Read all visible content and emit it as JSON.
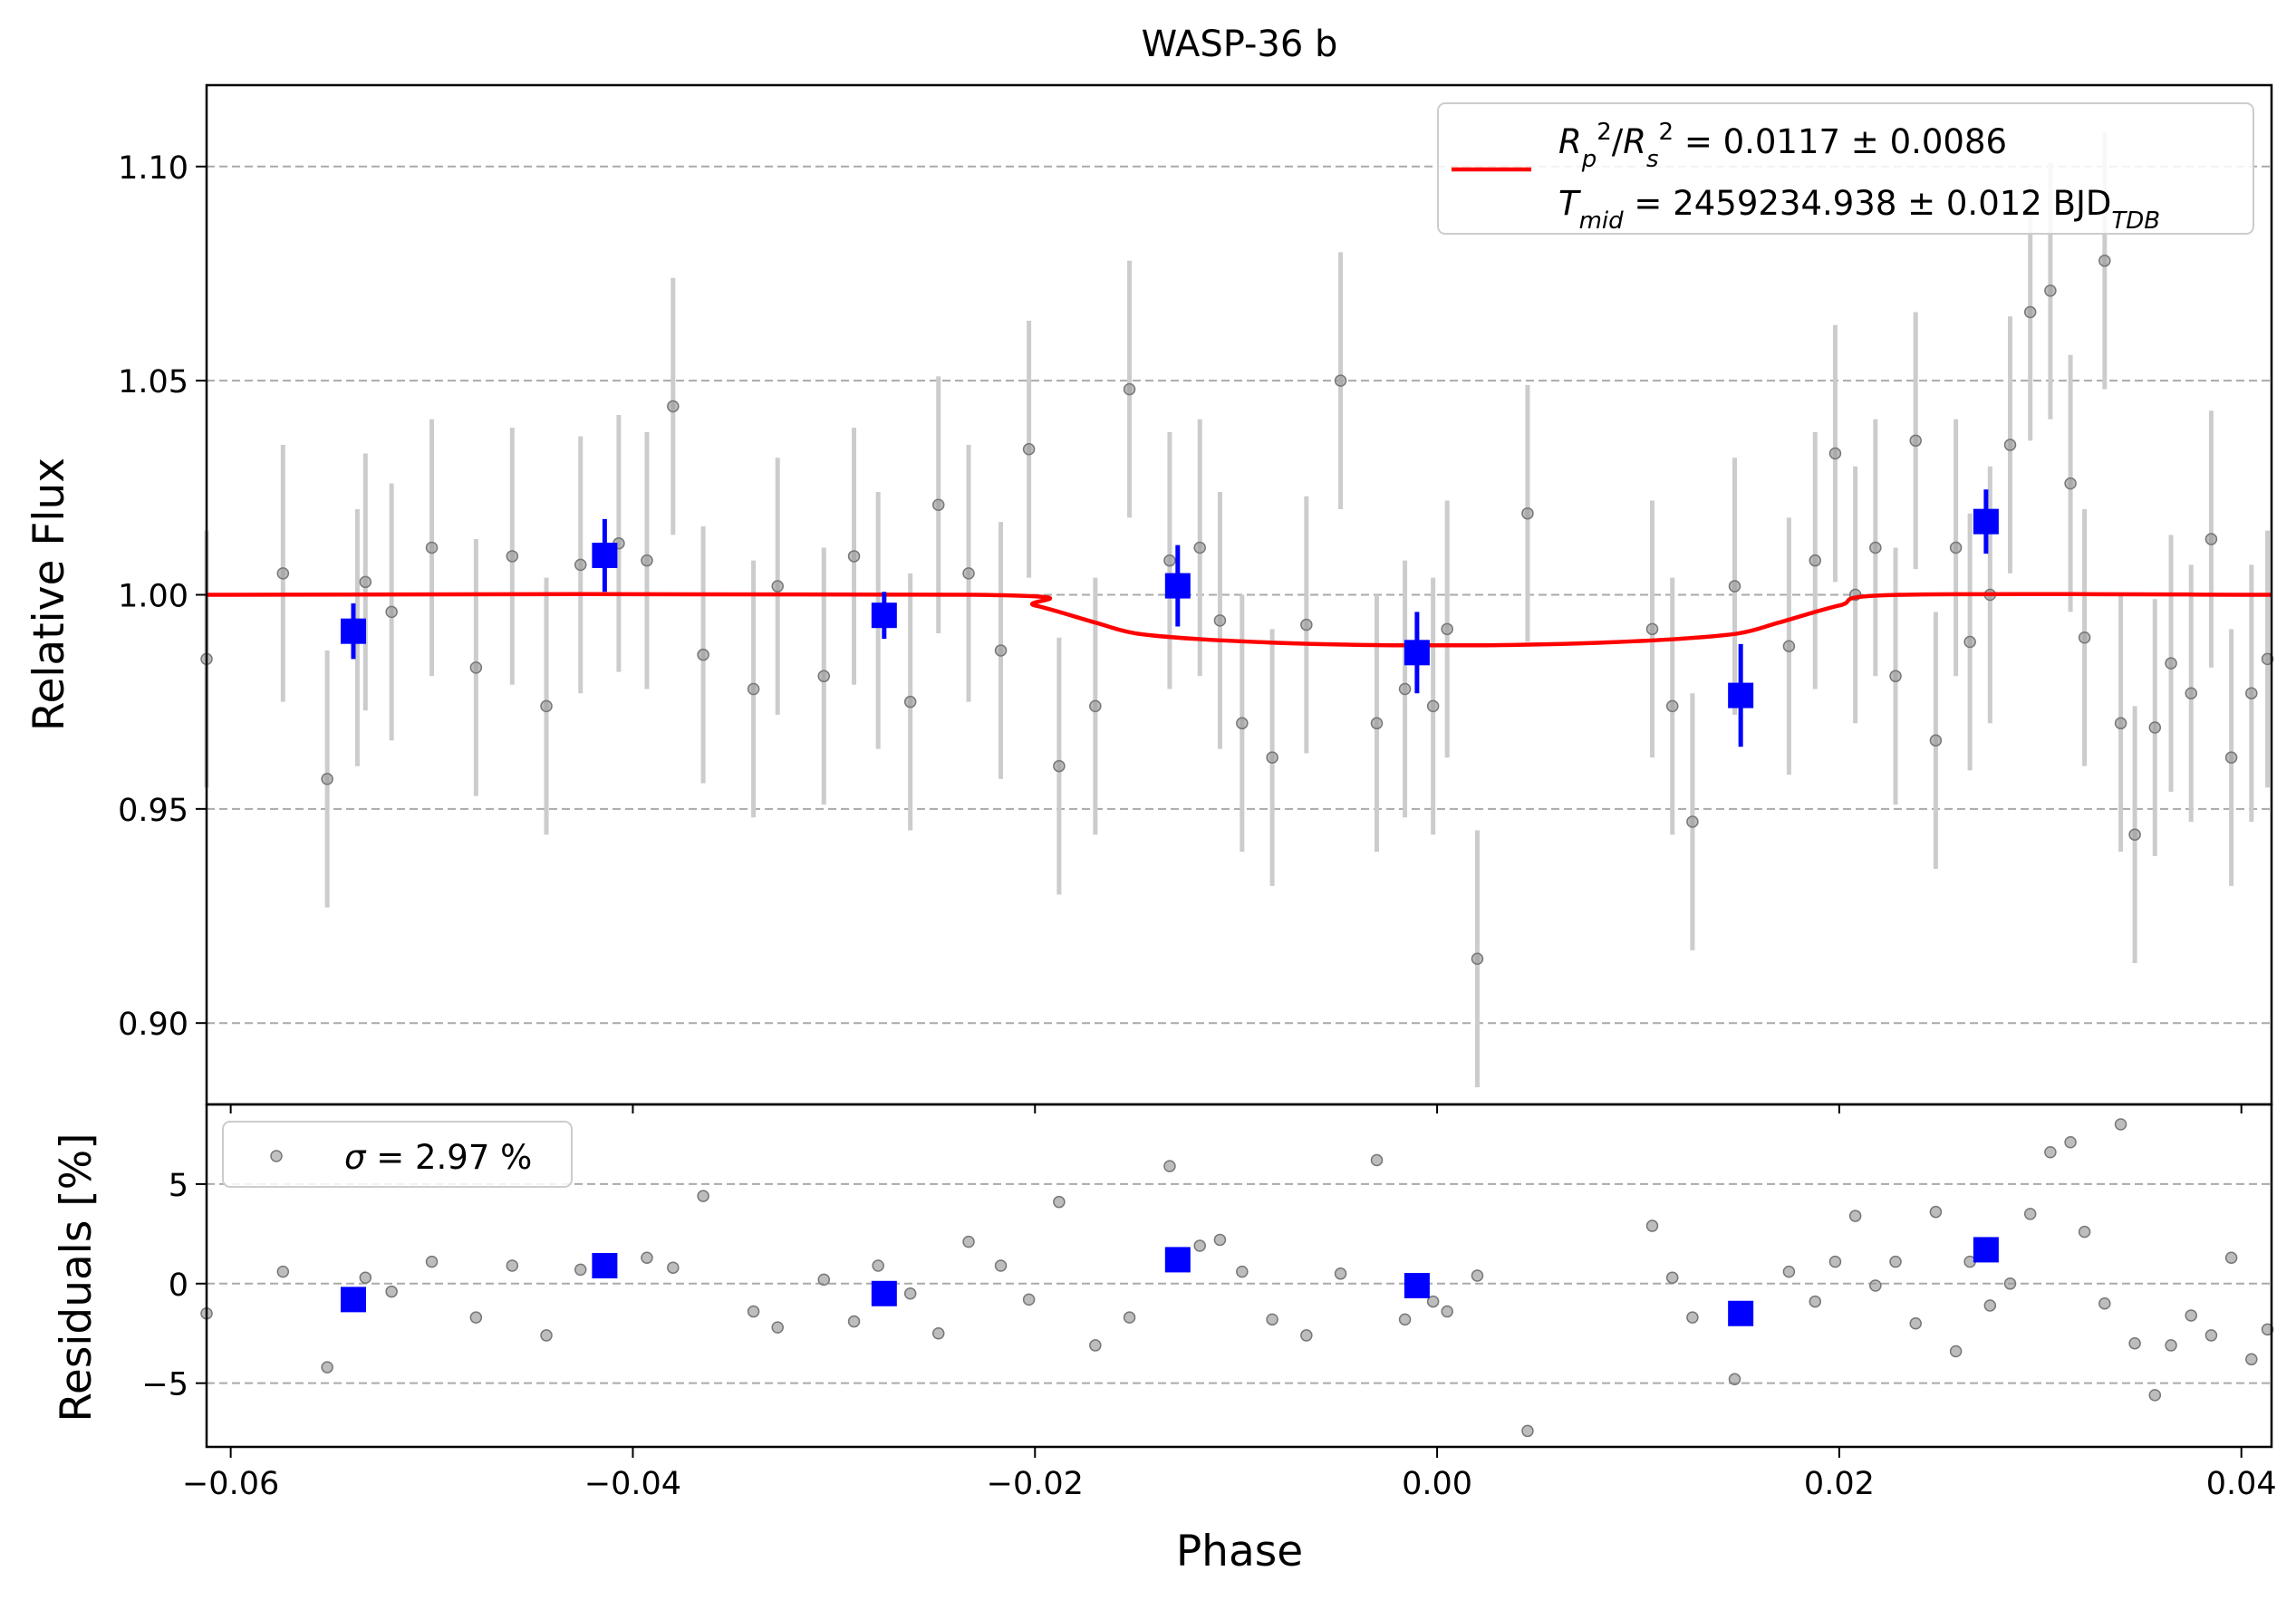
{
  "chart_data": [
    {
      "panel": "main",
      "type": "scatter",
      "title": "WASP-36 b",
      "xlabel": "",
      "ylabel": "Relative Flux",
      "xlim": [
        -0.0612,
        0.0415
      ],
      "ylim": [
        0.881,
        1.119
      ],
      "xticks": [
        -0.06,
        -0.04,
        -0.02,
        0.0,
        0.02,
        0.04
      ],
      "xtick_labels": [
        "",
        "",
        "",
        "",
        "",
        ""
      ],
      "yticks": [
        0.9,
        0.95,
        1.0,
        1.05,
        1.1
      ],
      "ytick_labels": [
        "0.90",
        "0.95",
        "1.00",
        "1.05",
        "1.10"
      ],
      "grid": "horizontal dashed",
      "legend": {
        "placement": "top-right",
        "line1": "R_p^2/R_s^2 = 0.0117 ± 0.0086",
        "line2": "T_mid = 2459234.938 ± 0.012 BJD_TDB"
      },
      "colors": {
        "data": "#999999",
        "errorbar": "#cccccc",
        "binned": "#0000ff",
        "model": "#ff0000"
      },
      "series": [
        {
          "kind": "data",
          "x": [
            -0.0612,
            -0.0574,
            -0.0552,
            -0.0537,
            -0.0533,
            -0.052,
            -0.05,
            -0.0478,
            -0.046,
            -0.0443,
            -0.0426,
            -0.0407,
            -0.0393,
            -0.038,
            -0.0365,
            -0.034,
            -0.0328,
            -0.0305,
            -0.029,
            -0.0278,
            -0.0262,
            -0.0248,
            -0.0233,
            -0.0217,
            -0.0203,
            -0.0188,
            -0.017,
            -0.0153,
            -0.0133,
            -0.0118,
            -0.0108,
            -0.0097,
            -0.0082,
            -0.0065,
            -0.0048,
            -0.003,
            -0.0016,
            -0.0002,
            0.0005,
            0.002,
            0.0045,
            0.0107,
            0.0117,
            0.0127,
            0.0148,
            0.0175,
            0.0188,
            0.0198,
            0.0208,
            0.0218,
            0.0228,
            0.0238,
            0.0248,
            0.0258,
            0.0265,
            0.0275,
            0.0285,
            0.0295,
            0.0305,
            0.0315,
            0.0322,
            0.0332,
            0.034,
            0.0347,
            0.0357,
            0.0365,
            0.0375,
            0.0385,
            0.0395,
            0.0405,
            0.0413
          ],
          "y": [
            0.985,
            1.005,
            0.957,
            0.99,
            1.003,
            0.996,
            1.011,
            0.983,
            1.009,
            0.974,
            1.007,
            1.012,
            1.008,
            1.044,
            0.986,
            0.978,
            1.002,
            0.981,
            1.009,
            0.994,
            0.975,
            1.021,
            1.005,
            0.987,
            1.034,
            0.96,
            0.974,
            1.048,
            1.008,
            1.011,
            0.994,
            0.97,
            0.962,
            0.993,
            1.05,
            0.97,
            0.978,
            0.974,
            0.992,
            0.915,
            1.019,
            0.992,
            0.974,
            0.947,
            1.002,
            0.988,
            1.008,
            1.033,
            1.0,
            1.011,
            0.981,
            1.036,
            0.966,
            1.011,
            0.989,
            1.0,
            1.035,
            1.066,
            1.071,
            1.026,
            0.99,
            1.078,
            0.97,
            0.944,
            0.969,
            0.984,
            0.977,
            1.013,
            0.962,
            0.977,
            0.985
          ],
          "yerr": 0.03
        },
        {
          "kind": "binned",
          "x": [
            -0.0539,
            -0.0414,
            -0.0275,
            -0.0129,
            -0.001,
            0.0151,
            0.0273
          ],
          "y": [
            0.9915,
            1.0092,
            0.9952,
            1.0021,
            0.9865,
            0.9765,
            1.0171
          ],
          "yerr": [
            0.0065,
            0.0085,
            0.0055,
            0.0095,
            0.0095,
            0.012,
            0.0075
          ]
        },
        {
          "kind": "model",
          "x": [
            -0.0612,
            -0.023,
            -0.02,
            -0.017,
            -0.015,
            -0.012,
            -0.008,
            -0.004,
            0.0,
            0.004,
            0.008,
            0.012,
            0.015,
            0.017,
            0.02,
            0.023,
            0.0415
          ],
          "y": [
            1.0,
            1.0,
            0.9975,
            0.9935,
            0.991,
            0.9897,
            0.9888,
            0.9883,
            0.9882,
            0.9883,
            0.9888,
            0.9897,
            0.991,
            0.9935,
            0.9975,
            1.0,
            1.0
          ]
        }
      ]
    },
    {
      "panel": "residuals",
      "type": "scatter",
      "xlabel": "Phase",
      "ylabel": "Residuals [%]",
      "xlim": [
        -0.0612,
        0.0415
      ],
      "ylim": [
        -8.2,
        9.0
      ],
      "xticks": [
        -0.06,
        -0.04,
        -0.02,
        0.0,
        0.02,
        0.04
      ],
      "xtick_labels": [
        "−0.06",
        "−0.04",
        "−0.02",
        "0.00",
        "0.02",
        "0.04"
      ],
      "yticks": [
        -5,
        0,
        5
      ],
      "ytick_labels": [
        "−5",
        "0",
        "5"
      ],
      "grid": "horizontal dashed",
      "legend": {
        "placement": "top-left",
        "label": "σ = 2.97 %"
      },
      "series": [
        {
          "kind": "residuals",
          "x": [
            -0.0612,
            -0.0574,
            -0.0552,
            -0.0533,
            -0.052,
            -0.05,
            -0.0478,
            -0.046,
            -0.0443,
            -0.0426,
            -0.0393,
            -0.038,
            -0.0365,
            -0.034,
            -0.0328,
            -0.0305,
            -0.029,
            -0.0278,
            -0.0262,
            -0.0248,
            -0.0233,
            -0.0217,
            -0.0203,
            -0.0188,
            -0.017,
            -0.0153,
            -0.0133,
            -0.0118,
            -0.0108,
            -0.0097,
            -0.0082,
            -0.0065,
            -0.0048,
            -0.003,
            -0.0016,
            -0.0002,
            0.0005,
            0.002,
            0.0045,
            0.0107,
            0.0117,
            0.0127,
            0.0148,
            0.0175,
            0.0188,
            0.0198,
            0.0208,
            0.0218,
            0.0228,
            0.0238,
            0.0248,
            0.0258,
            0.0265,
            0.0275,
            0.0285,
            0.0295,
            0.0305,
            0.0315,
            0.0322,
            0.0332,
            0.034,
            0.0347,
            0.0357,
            0.0365,
            0.0375,
            0.0385,
            0.0395,
            0.0405,
            0.0413
          ],
          "y": [
            -1.5,
            0.6,
            -4.2,
            0.3,
            -0.4,
            1.1,
            -1.7,
            0.9,
            -2.6,
            0.7,
            1.3,
            0.8,
            4.4,
            -1.4,
            -2.2,
            0.2,
            -1.9,
            0.9,
            -0.5,
            -2.5,
            2.1,
            0.9,
            -0.8,
            4.1,
            -3.1,
            -1.7,
            5.9,
            1.9,
            2.2,
            0.6,
            -1.8,
            -2.6,
            0.5,
            6.2,
            -1.8,
            -0.9,
            -1.4,
            0.4,
            -7.4,
            2.9,
            0.3,
            -1.7,
            -4.8,
            0.6,
            -0.9,
            1.1,
            3.4,
            -0.1,
            1.1,
            -2.0,
            3.6,
            -3.4,
            1.1,
            -1.1,
            0.0,
            3.5,
            6.6,
            7.1,
            2.6,
            -1.0,
            8.0,
            -3.0,
            -5.6,
            -3.1,
            -1.6,
            -2.6,
            1.3,
            -3.8,
            -2.3
          ],
          "color": "#999999"
        },
        {
          "kind": "binned",
          "x": [
            -0.0539,
            -0.0414,
            -0.0275,
            -0.0129,
            -0.001,
            0.0151,
            0.0273
          ],
          "y": [
            -0.8,
            0.9,
            -0.5,
            1.2,
            -0.1,
            -1.5,
            1.7
          ],
          "color": "#0000ff"
        }
      ]
    }
  ]
}
